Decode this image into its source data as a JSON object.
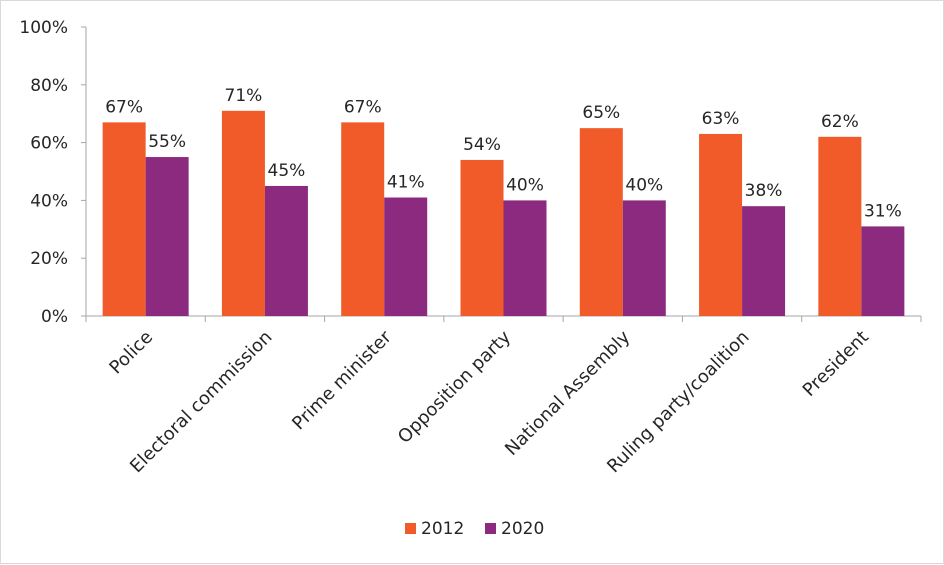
{
  "chart_data": {
    "type": "bar",
    "categories": [
      "Police",
      "Electoral commission",
      "Prime minister",
      "Opposition party",
      "National Assembly",
      "Ruling party/coalition",
      "President"
    ],
    "series": [
      {
        "name": "2012",
        "color": "#f15a29",
        "values": [
          67,
          71,
          67,
          54,
          65,
          63,
          62
        ],
        "labels": [
          "67%",
          "71%",
          "67%",
          "54%",
          "65%",
          "63%",
          "62%"
        ]
      },
      {
        "name": "2020",
        "color": "#8b2a7e",
        "values": [
          55,
          45,
          41,
          40,
          40,
          38,
          31
        ],
        "labels": [
          "55%",
          "45%",
          "41%",
          "40%",
          "40%",
          "38%",
          "31%"
        ]
      }
    ],
    "ylim": [
      0,
      100
    ],
    "yticks": [
      0,
      20,
      40,
      60,
      80,
      100
    ],
    "ytick_labels": [
      "0%",
      "20%",
      "40%",
      "60%",
      "80%",
      "100%"
    ],
    "grid": false,
    "legend_position": "bottom"
  }
}
